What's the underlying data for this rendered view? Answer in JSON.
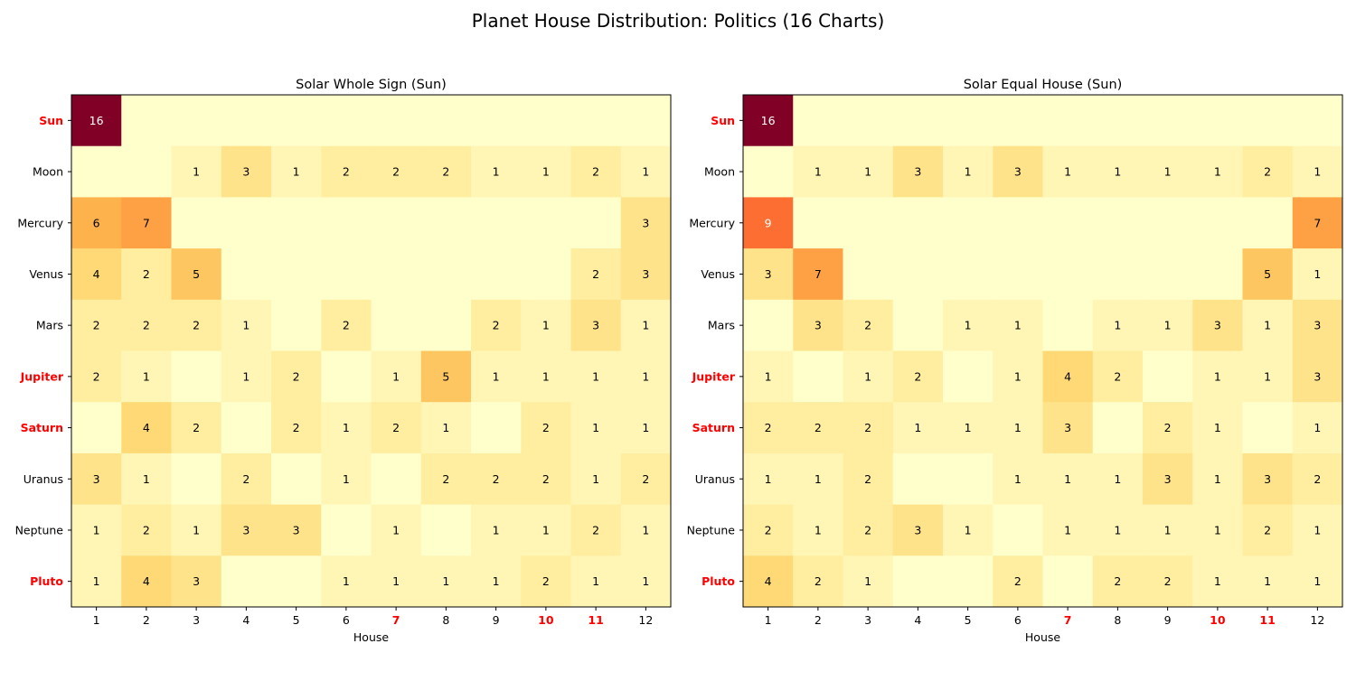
{
  "chart_data": {
    "type": "heatmap",
    "title": "Planet House Distribution: Politics (16 Charts)",
    "colormap": "YlOrRd",
    "value_range": [
      0,
      16
    ],
    "highlight_color": "#ff0000",
    "panels": [
      {
        "title": "Solar Whole Sign (Sun)",
        "xlabel": "House",
        "x_ticks": [
          "1",
          "2",
          "3",
          "4",
          "5",
          "6",
          "7",
          "8",
          "9",
          "10",
          "11",
          "12"
        ],
        "y_ticks": [
          "Sun",
          "Moon",
          "Mercury",
          "Venus",
          "Mars",
          "Jupiter",
          "Saturn",
          "Uranus",
          "Neptune",
          "Pluto"
        ],
        "highlighted_rows": [
          "Sun",
          "Jupiter",
          "Saturn",
          "Pluto"
        ],
        "highlighted_columns": [
          "7",
          "10",
          "11"
        ],
        "values": [
          [
            16,
            0,
            0,
            0,
            0,
            0,
            0,
            0,
            0,
            0,
            0,
            0
          ],
          [
            0,
            0,
            1,
            3,
            1,
            2,
            2,
            2,
            1,
            1,
            2,
            1
          ],
          [
            6,
            7,
            0,
            0,
            0,
            0,
            0,
            0,
            0,
            0,
            0,
            3
          ],
          [
            4,
            2,
            5,
            0,
            0,
            0,
            0,
            0,
            0,
            0,
            2,
            3
          ],
          [
            2,
            2,
            2,
            1,
            0,
            2,
            0,
            0,
            2,
            1,
            3,
            1
          ],
          [
            2,
            1,
            0,
            1,
            2,
            0,
            1,
            5,
            1,
            1,
            1,
            1
          ],
          [
            0,
            4,
            2,
            0,
            2,
            1,
            2,
            1,
            0,
            2,
            1,
            1
          ],
          [
            3,
            1,
            0,
            2,
            0,
            1,
            0,
            2,
            2,
            2,
            1,
            2
          ],
          [
            1,
            2,
            1,
            3,
            3,
            0,
            1,
            0,
            1,
            1,
            2,
            1
          ],
          [
            1,
            4,
            3,
            0,
            0,
            1,
            1,
            1,
            1,
            2,
            1,
            1
          ]
        ]
      },
      {
        "title": "Solar Equal House (Sun)",
        "xlabel": "House",
        "x_ticks": [
          "1",
          "2",
          "3",
          "4",
          "5",
          "6",
          "7",
          "8",
          "9",
          "10",
          "11",
          "12"
        ],
        "y_ticks": [
          "Sun",
          "Moon",
          "Mercury",
          "Venus",
          "Mars",
          "Jupiter",
          "Saturn",
          "Uranus",
          "Neptune",
          "Pluto"
        ],
        "highlighted_rows": [
          "Sun",
          "Jupiter",
          "Saturn",
          "Pluto"
        ],
        "highlighted_columns": [
          "7",
          "10",
          "11"
        ],
        "values": [
          [
            16,
            0,
            0,
            0,
            0,
            0,
            0,
            0,
            0,
            0,
            0,
            0
          ],
          [
            0,
            1,
            1,
            3,
            1,
            3,
            1,
            1,
            1,
            1,
            2,
            1
          ],
          [
            9,
            0,
            0,
            0,
            0,
            0,
            0,
            0,
            0,
            0,
            0,
            7
          ],
          [
            3,
            7,
            0,
            0,
            0,
            0,
            0,
            0,
            0,
            0,
            5,
            1
          ],
          [
            0,
            3,
            2,
            0,
            1,
            1,
            0,
            1,
            1,
            3,
            1,
            3
          ],
          [
            1,
            0,
            1,
            2,
            0,
            1,
            4,
            2,
            0,
            1,
            1,
            3
          ],
          [
            2,
            2,
            2,
            1,
            1,
            1,
            3,
            0,
            2,
            1,
            0,
            1
          ],
          [
            1,
            1,
            2,
            0,
            0,
            1,
            1,
            1,
            3,
            1,
            3,
            2
          ],
          [
            2,
            1,
            2,
            3,
            1,
            0,
            1,
            1,
            1,
            1,
            2,
            1
          ],
          [
            4,
            2,
            1,
            0,
            0,
            2,
            0,
            2,
            2,
            1,
            1,
            1
          ]
        ]
      }
    ]
  }
}
